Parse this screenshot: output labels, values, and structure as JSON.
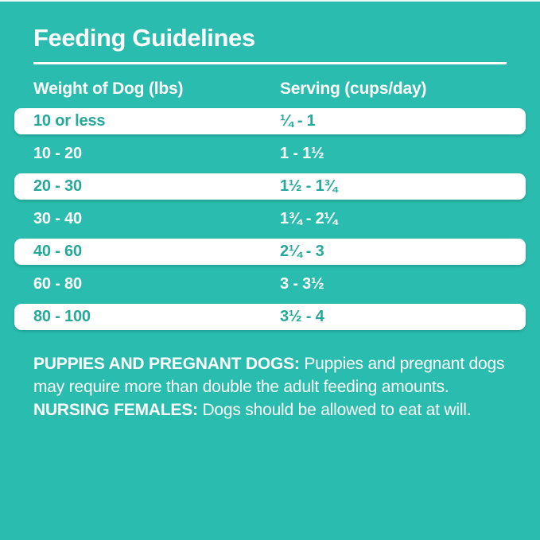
{
  "theme": {
    "background_teal": "#2ABCAE",
    "row_white": "#FFFFFF",
    "teal_text_on_white": "#26A89B",
    "text_white": "#FFFFFF"
  },
  "title": "Feeding Guidelines",
  "table": {
    "columns": [
      "Weight of Dog (lbs)",
      "Serving (cups/day)"
    ],
    "rows": [
      {
        "weight": "10 or less",
        "serving": "¼ - 1"
      },
      {
        "weight": "10 - 20",
        "serving": "1 - 1½"
      },
      {
        "weight": "20 - 30",
        "serving": "1½ - 1¾"
      },
      {
        "weight": "30 - 40",
        "serving": "1¾ - 2¼"
      },
      {
        "weight": "40 - 60",
        "serving": "2¼ - 3"
      },
      {
        "weight": "60 - 80",
        "serving": "3 - 3½"
      },
      {
        "weight": "80 - 100",
        "serving": "3½ - 4"
      }
    ]
  },
  "notes": {
    "segments": [
      {
        "text": "PUPPIES AND PREGNANT DOGS:",
        "bold": true
      },
      {
        "text": " Puppies and pregnant dogs may require more than double the adult feeding amounts. ",
        "bold": false
      },
      {
        "text": "NURSING FEMALES:",
        "bold": true
      },
      {
        "text": " Dogs should be allowed to eat at will.",
        "bold": false
      }
    ]
  }
}
